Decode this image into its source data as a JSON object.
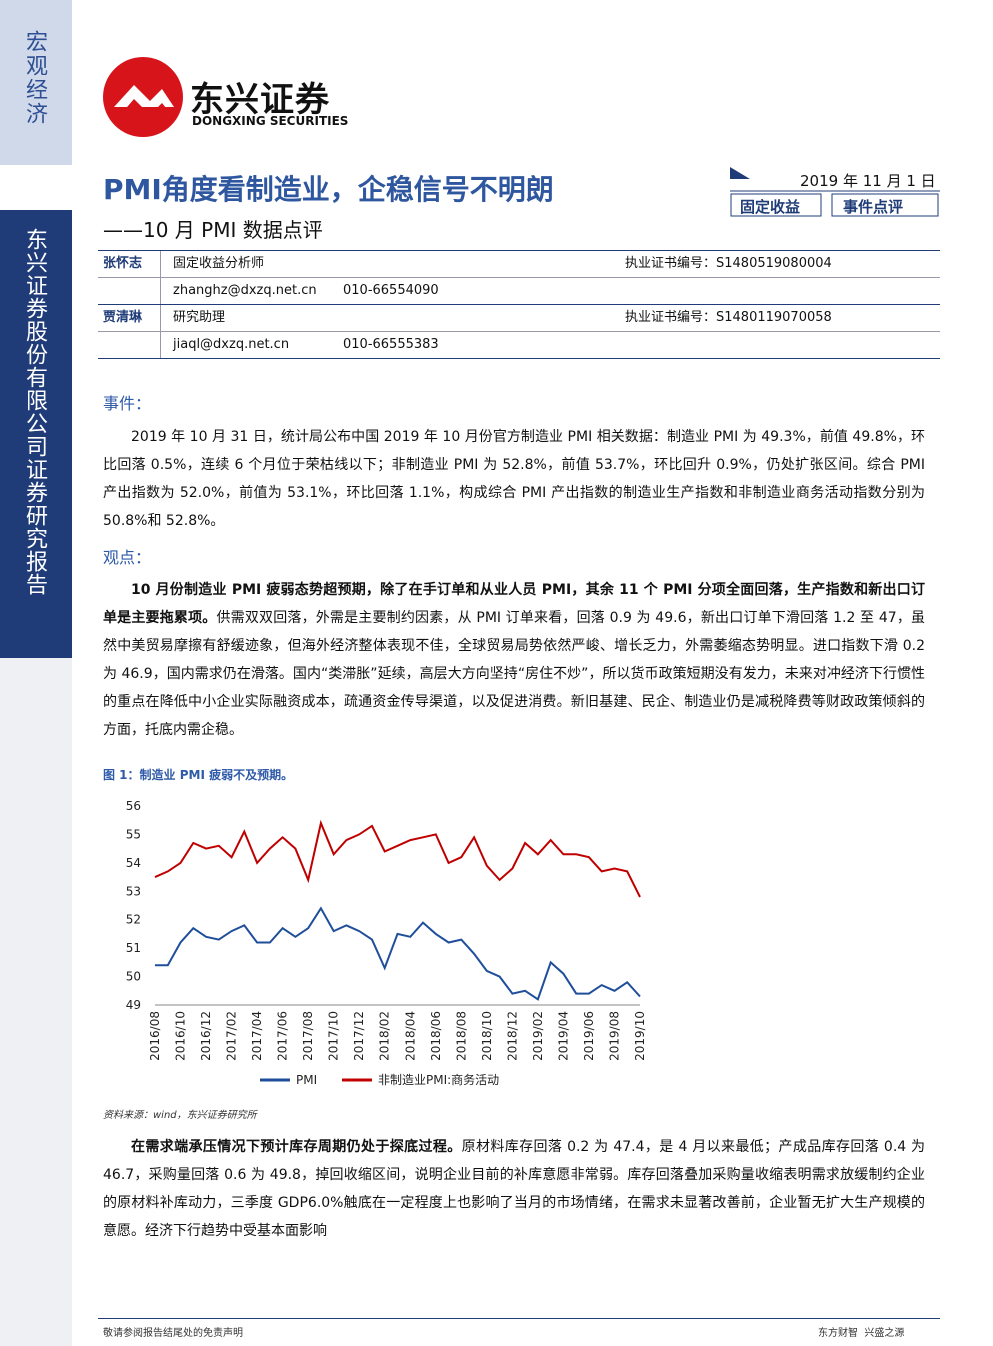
{
  "sidebar": {
    "category": "宏观经济",
    "company": "东兴证券股份有限公司证券研究报告"
  },
  "logo": {
    "cn": "东兴证券",
    "en": "DONGXING SECURITIES"
  },
  "header": {
    "title": "PMI角度看制造业，企稳信号不明朗",
    "subtitle": "——10 月 PMI 数据点评",
    "date": "2019 年 11 月 1 日",
    "tags": [
      "固定收益",
      "事件点评"
    ]
  },
  "authors": [
    {
      "name": "张怀志",
      "role": "固定收益分析师",
      "cert": "执业证书编号：S1480519080004",
      "email": "zhanghz@dxzq.net.cn",
      "phone": "010-66554090"
    },
    {
      "name": "贾清琳",
      "role": "研究助理",
      "cert": "执业证书编号：S1480119070058",
      "email": "jiaql@dxzq.net.cn",
      "phone": "010-66555383"
    }
  ],
  "sections": [
    {
      "heading": "事件：",
      "paragraphs": [
        {
          "text": "2019 年 10 月 31 日，统计局公布中国 2019 年 10 月份官方制造业 PMI 相关数据：制造业 PMI 为 49.3%，前值 49.8%，环比回落 0.5%，连续 6 个月位于荣枯线以下；非制造业 PMI 为 52.8%，前值 53.7%，环比回升 0.9%，仍处扩张区间。综合 PMI 产出指数为 52.0%，前值为 53.1%，环比回落 1.1%，构成综合 PMI 产出指数的制造业生产指数和非制造业商务活动指数分别为 50.8%和 52.8%。"
        }
      ]
    },
    {
      "heading": "观点：",
      "paragraphs": [
        {
          "bold": "10 月份制造业 PMI 疲弱态势超预期，除了在手订单和从业人员 PMI，其余 11 个 PMI 分项全面回落，生产指数和新出口订单是主要拖累项。",
          "text": "供需双双回落，外需是主要制约因素，从 PMI 订单来看，回落 0.9 为 49.6，新出口订单下滑回落 1.2 至 47，虽然中美贸易摩擦有舒缓迹象，但海外经济整体表现不佳，全球贸易局势依然严峻、增长乏力，外需萎缩态势明显。进口指数下滑 0.2 为 46.9，国内需求仍在滑落。国内“类滞胀”延续，高层大方向坚持“房住不炒”，所以货币政策短期没有发力，未来对冲经济下行惯性的重点在降低中小企业实际融资成本，疏通资金传导渠道，以及促进消费。新旧基建、民企、制造业仍是减税降费等财政政策倾斜的方面，托底内需企稳。"
        }
      ]
    }
  ],
  "figure": {
    "caption": "图 1：制造业 PMI 疲弱不及预期。",
    "source": "资料来源：wind，东兴证券研究所"
  },
  "chart_data": {
    "type": "line",
    "categories": [
      "2016/08",
      null,
      "2016/10",
      null,
      "2016/12",
      null,
      "2017/02",
      null,
      "2017/04",
      null,
      "2017/06",
      null,
      "2017/08",
      null,
      "2017/10",
      null,
      "2017/12",
      null,
      "2018/02",
      null,
      "2018/04",
      null,
      "2018/06",
      null,
      "2018/08",
      null,
      "2018/10",
      null,
      "2018/12",
      null,
      "2019/02",
      null,
      "2019/04",
      null,
      "2019/06",
      null,
      "2019/08",
      null,
      "2019/10"
    ],
    "series": [
      {
        "name": "PMI",
        "color": "#1f4e9a",
        "values": [
          50.4,
          50.4,
          51.2,
          51.7,
          51.4,
          51.3,
          51.6,
          51.8,
          51.2,
          51.2,
          51.7,
          51.4,
          51.7,
          52.4,
          51.6,
          51.8,
          51.6,
          51.3,
          50.3,
          51.5,
          51.4,
          51.9,
          51.5,
          51.2,
          51.3,
          50.8,
          50.2,
          50.0,
          49.4,
          49.5,
          49.2,
          50.5,
          50.1,
          49.4,
          49.4,
          49.7,
          49.5,
          49.8,
          49.3
        ]
      },
      {
        "name": "非制造业PMI:商务活动",
        "color": "#c00000",
        "values": [
          53.5,
          53.7,
          54.0,
          54.7,
          54.5,
          54.6,
          54.2,
          55.1,
          54.0,
          54.5,
          54.9,
          54.5,
          53.4,
          55.4,
          54.3,
          54.8,
          55.0,
          55.3,
          54.4,
          54.6,
          54.8,
          54.9,
          55.0,
          54.0,
          54.2,
          54.9,
          53.9,
          53.4,
          53.8,
          54.7,
          54.3,
          54.8,
          54.3,
          54.3,
          54.2,
          53.7,
          53.8,
          53.7,
          52.8
        ]
      }
    ],
    "ylim": [
      49,
      56
    ],
    "yticks": [
      49,
      50,
      51,
      52,
      53,
      54,
      55,
      56
    ],
    "legend": "bottom"
  },
  "sections2": [
    {
      "paragraphs": [
        {
          "bold": "在需求端承压情况下预计库存周期仍处于探底过程。",
          "text": "原材料库存回落 0.2 为 47.4，是 4 月以来最低；产成品库存回落 0.4 为 46.7，采购量回落 0.6 为 49.8，掉回收缩区间，说明企业目前的补库意愿非常弱。库存回落叠加采购量收缩表明需求放缓制约企业的原材料补库动力，三季度 GDP6.0%触底在一定程度上也影响了当月的市场情绪，在需求未显著改善前，企业暂无扩大生产规模的意愿。经济下行趋势中受基本面影响"
        }
      ]
    }
  ],
  "footer": {
    "left": "敬请参阅报告结尾处的免责声明",
    "right": "东方财智  兴盛之源"
  }
}
